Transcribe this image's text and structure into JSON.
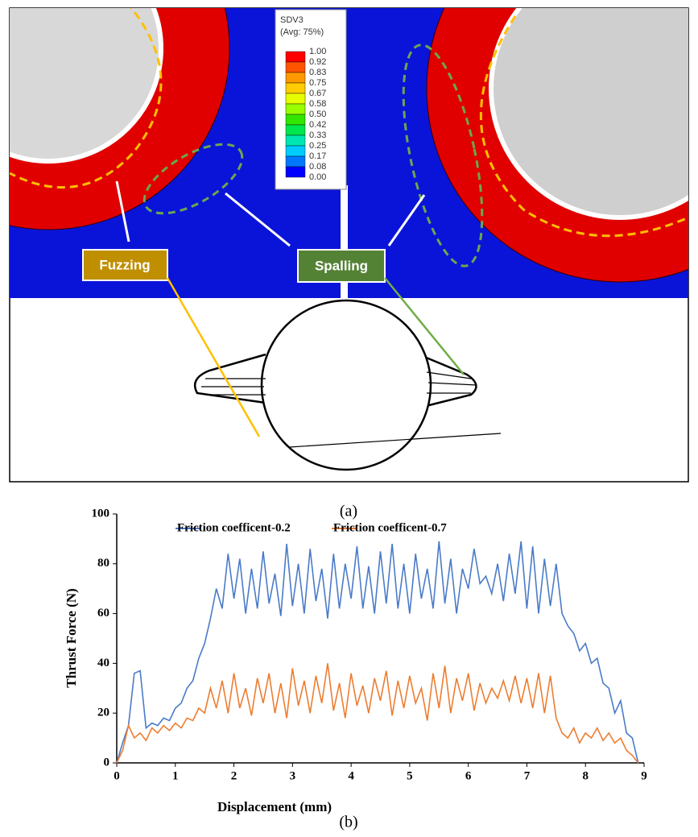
{
  "panel_a": {
    "contour_legend": {
      "title": "SDV3",
      "subtitle": "(Avg: 75%)",
      "labels": [
        "1.00",
        "0.92",
        "0.83",
        "0.75",
        "0.67",
        "0.58",
        "0.50",
        "0.42",
        "0.33",
        "0.25",
        "0.17",
        "0.08",
        "0.00"
      ],
      "colors": [
        "#ff0000",
        "#ff5500",
        "#ff9900",
        "#ffcc00",
        "#e6ff00",
        "#99ff00",
        "#33e600",
        "#00e64d",
        "#00e6b3",
        "#00ccff",
        "#0077ff",
        "#0000ff"
      ]
    },
    "annotations": [
      "Fuzzing",
      "Spalling"
    ],
    "caption": "(a)"
  },
  "chart_data": {
    "type": "line",
    "x_label": "Displacement (mm)",
    "y_label": "Thrust Force (N)",
    "x": [
      0,
      0.1,
      0.2,
      0.3,
      0.4,
      0.5,
      0.6,
      0.7,
      0.8,
      0.9,
      1.0,
      1.1,
      1.2,
      1.3,
      1.4,
      1.5,
      1.6,
      1.7,
      1.8,
      1.9,
      2.0,
      2.1,
      2.2,
      2.3,
      2.4,
      2.5,
      2.6,
      2.7,
      2.8,
      2.9,
      3.0,
      3.1,
      3.2,
      3.3,
      3.4,
      3.5,
      3.6,
      3.7,
      3.8,
      3.9,
      4.0,
      4.1,
      4.2,
      4.3,
      4.4,
      4.5,
      4.6,
      4.7,
      4.8,
      4.9,
      5.0,
      5.1,
      5.2,
      5.3,
      5.4,
      5.5,
      5.6,
      5.7,
      5.8,
      5.9,
      6.0,
      6.1,
      6.2,
      6.3,
      6.4,
      6.5,
      6.6,
      6.7,
      6.8,
      6.9,
      7.0,
      7.1,
      7.2,
      7.3,
      7.4,
      7.5,
      7.6,
      7.7,
      7.8,
      7.9,
      8.0,
      8.1,
      8.2,
      8.3,
      8.4,
      8.5,
      8.6,
      8.7,
      8.8,
      8.9,
      9.0
    ],
    "series": [
      {
        "name": "Friction coefficent-0.2",
        "color": "#4a7bc8",
        "values": [
          0,
          8,
          15,
          36,
          37,
          14,
          16,
          15,
          18,
          17,
          22,
          24,
          30,
          33,
          42,
          48,
          58,
          70,
          62,
          84,
          66,
          82,
          60,
          78,
          62,
          85,
          64,
          76,
          59,
          88,
          63,
          80,
          60,
          86,
          65,
          78,
          58,
          84,
          62,
          80,
          66,
          87,
          62,
          79,
          60,
          85,
          64,
          88,
          62,
          80,
          60,
          84,
          66,
          78,
          62,
          89,
          64,
          82,
          60,
          78,
          70,
          86,
          72,
          75,
          68,
          80,
          65,
          84,
          68,
          89,
          62,
          87,
          60,
          82,
          63,
          80,
          60,
          55,
          52,
          45,
          48,
          40,
          42,
          32,
          30,
          20,
          25,
          12,
          10,
          0,
          null
        ]
      },
      {
        "name": "Friction coefficent-0.7",
        "color": "#ed7d31",
        "values": [
          0,
          5,
          15,
          10,
          12,
          9,
          14,
          12,
          15,
          13,
          16,
          14,
          18,
          17,
          22,
          20,
          30,
          22,
          33,
          20,
          36,
          22,
          30,
          19,
          34,
          24,
          36,
          20,
          32,
          18,
          38,
          23,
          33,
          20,
          35,
          24,
          40,
          21,
          32,
          18,
          36,
          23,
          31,
          20,
          34,
          25,
          37,
          19,
          33,
          22,
          35,
          24,
          30,
          17,
          36,
          22,
          39,
          20,
          34,
          25,
          36,
          21,
          32,
          24,
          30,
          26,
          33,
          25,
          35,
          24,
          34,
          22,
          36,
          20,
          35,
          18,
          12,
          10,
          14,
          8,
          12,
          10,
          14,
          9,
          12,
          8,
          10,
          5,
          3,
          0,
          null
        ]
      }
    ],
    "xlim": [
      0,
      9
    ],
    "xticks": [
      0,
      1,
      2,
      3,
      4,
      5,
      6,
      7,
      8,
      9
    ],
    "ylim": [
      0,
      100
    ],
    "yticks": [
      0,
      20,
      40,
      60,
      80,
      100
    ],
    "grid": false,
    "legend": "top",
    "caption": "(b)"
  }
}
